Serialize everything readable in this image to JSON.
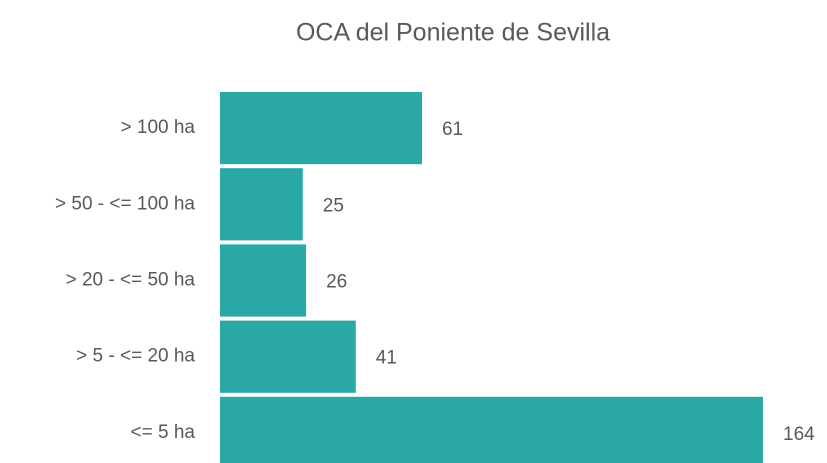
{
  "chart_data": {
    "type": "barh",
    "title": "OCA del Poniente de Sevilla",
    "categories": [
      "> 100 ha",
      "> 50 - <= 100 ha",
      "> 20 - <= 50 ha",
      "> 5 - <= 20 ha",
      "<= 5 ha"
    ],
    "values": [
      61,
      25,
      26,
      41,
      164
    ],
    "color": "#2aa8a5"
  }
}
